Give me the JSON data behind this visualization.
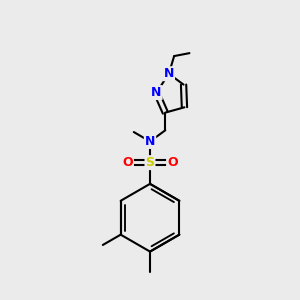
{
  "bg_color": "#ebebeb",
  "bond_color": "#000000",
  "bond_width": 1.5,
  "n_color": "#0000ff",
  "o_color": "#ff0000",
  "s_color": "#cccc00",
  "text_color": "#000000",
  "figsize": [
    3.0,
    3.0
  ],
  "dpi": 100,
  "xlim": [
    0,
    10
  ],
  "ylim": [
    0,
    10
  ]
}
